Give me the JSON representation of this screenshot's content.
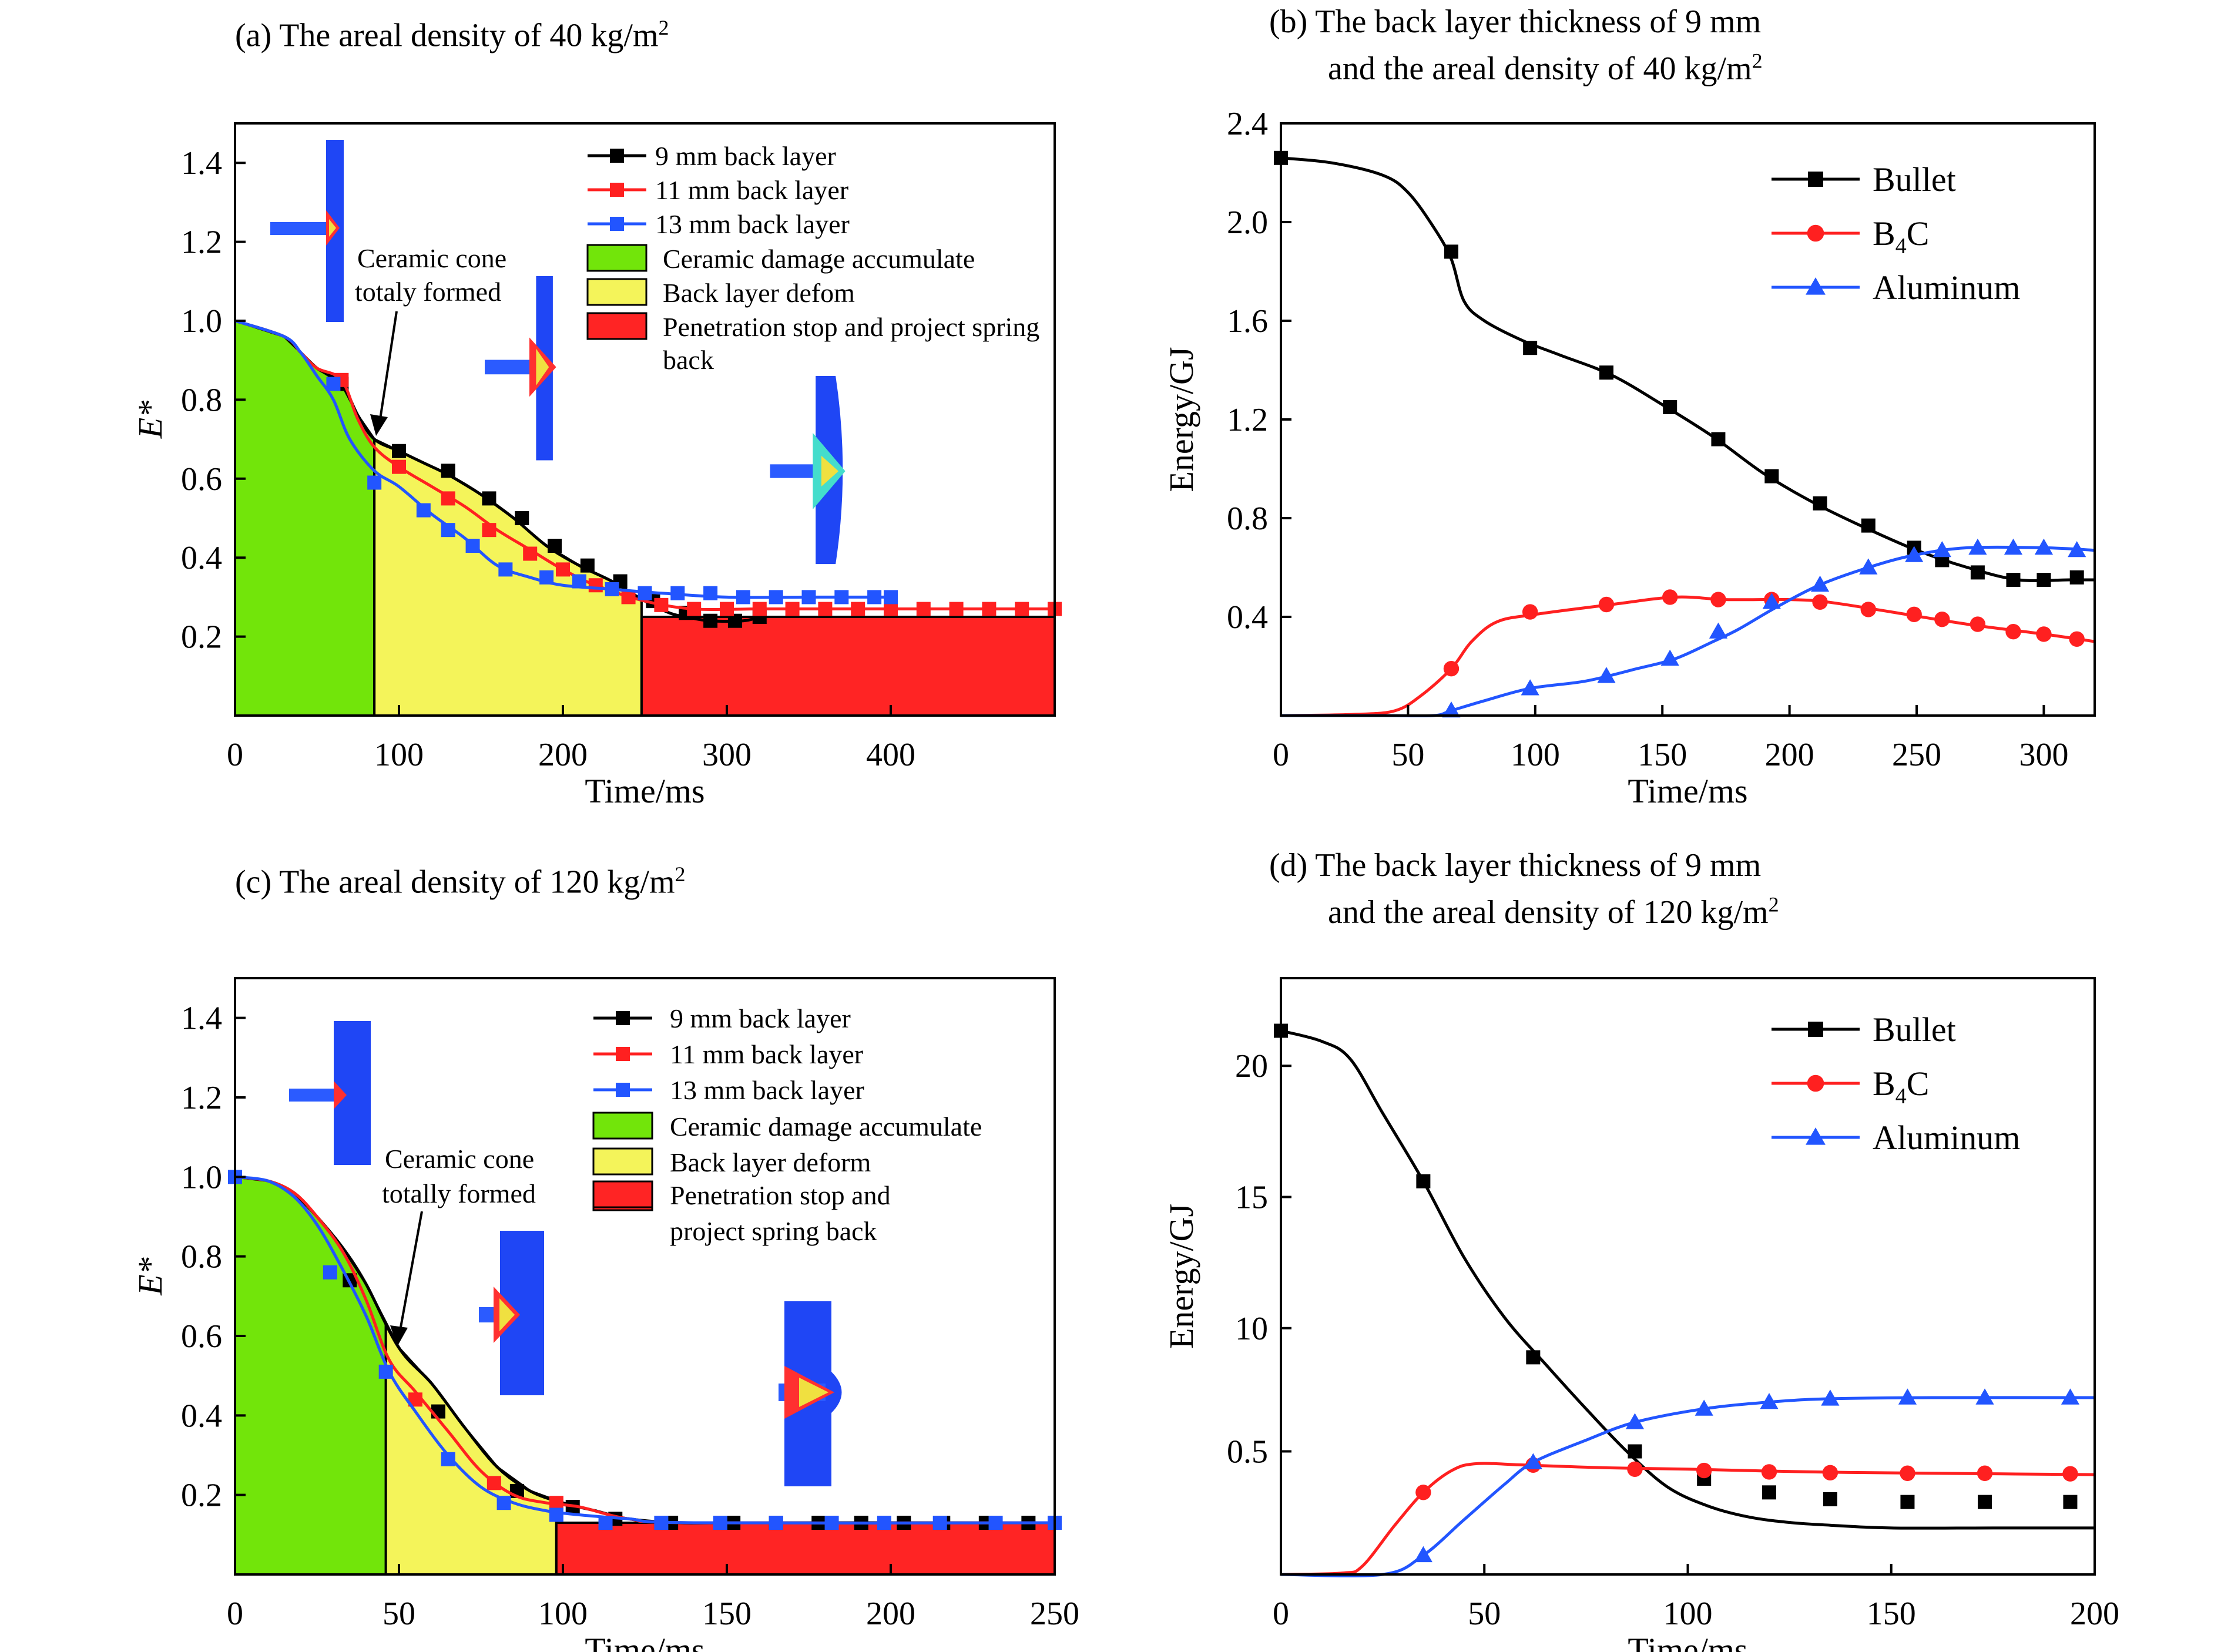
{
  "panels": {
    "a": {
      "title_main": "(a) The areal density of 40 kg/m",
      "title_sup": "2"
    },
    "b": {
      "title_line1": "(b) The back layer thickness of 9 mm",
      "title_line2_main": "and the areal density of 40 kg/m",
      "title_line2_sup": "2"
    },
    "c": {
      "title_main": "(c) The areal density of 120 kg/m",
      "title_sup": "2"
    },
    "d": {
      "title_line1": "(d) The back layer thickness of 9 mm",
      "title_line2_main": "and the areal density of 120 kg/m",
      "title_line2_sup": "2"
    }
  },
  "colors": {
    "black": "#000000",
    "red": "#ff2020",
    "blue": "#2255ff",
    "green_region": "#72e50a",
    "yellow_region": "#f4f45a",
    "red_region": "#ff2424"
  },
  "chart_data": [
    {
      "id": "a",
      "type": "line",
      "xlabel": "Time/ms",
      "ylabel": "E*",
      "xlim": [
        0,
        500
      ],
      "ylim": [
        0,
        1.5
      ],
      "xticks": [
        0,
        100,
        200,
        300,
        400
      ],
      "yticks": [
        0.2,
        0.4,
        0.6,
        0.8,
        1.0,
        1.2,
        1.4
      ],
      "regions": [
        {
          "label": "Ceramic damage accumulate",
          "x0": 0,
          "x1": 85,
          "color": "#72e50a"
        },
        {
          "label": "Back layer defom",
          "x0": 85,
          "x1": 248,
          "color": "#f4f45a"
        },
        {
          "label": "Penetration stop and project spring back",
          "x0": 248,
          "x1": 500,
          "color": "#ff2424",
          "top": 0.25
        }
      ],
      "annotation": {
        "text_line1": "Ceramic cone",
        "text_line2": "totaly formed",
        "x": 85,
        "y": 0.7
      },
      "series": [
        {
          "name": "9 mm back layer",
          "color": "#000000",
          "x": [
            0,
            30,
            40,
            50,
            65,
            75,
            85,
            100,
            115,
            130,
            150,
            170,
            190,
            210,
            230,
            250,
            265,
            275,
            290,
            310,
            320
          ],
          "y": [
            1.0,
            0.96,
            0.92,
            0.88,
            0.84,
            0.76,
            0.7,
            0.67,
            0.64,
            0.61,
            0.56,
            0.5,
            0.43,
            0.38,
            0.34,
            0.29,
            0.26,
            0.25,
            0.24,
            0.24,
            0.25
          ],
          "markers_x": [
            65,
            100,
            130,
            155,
            175,
            195,
            215,
            235,
            255,
            275,
            290,
            305,
            320
          ],
          "markers_y": [
            0.84,
            0.67,
            0.62,
            0.55,
            0.5,
            0.43,
            0.38,
            0.34,
            0.29,
            0.26,
            0.24,
            0.24,
            0.25
          ]
        },
        {
          "name": "11 mm back layer",
          "color": "#ff2020",
          "x": [
            0,
            30,
            40,
            50,
            65,
            75,
            85,
            100,
            120,
            140,
            160,
            180,
            200,
            220,
            250,
            280,
            320,
            400,
            500
          ],
          "y": [
            1.0,
            0.96,
            0.92,
            0.88,
            0.85,
            0.75,
            0.68,
            0.63,
            0.58,
            0.53,
            0.47,
            0.42,
            0.37,
            0.33,
            0.29,
            0.27,
            0.27,
            0.27,
            0.27
          ],
          "markers_x": [
            65,
            100,
            130,
            155,
            180,
            200,
            220,
            240,
            260,
            280,
            300,
            320,
            340,
            360,
            380,
            400,
            420,
            440,
            460,
            480,
            500
          ],
          "markers_y": [
            0.85,
            0.63,
            0.55,
            0.47,
            0.41,
            0.37,
            0.33,
            0.3,
            0.28,
            0.27,
            0.27,
            0.27,
            0.27,
            0.27,
            0.27,
            0.27,
            0.27,
            0.27,
            0.27,
            0.27,
            0.27
          ]
        },
        {
          "name": "13 mm back layer",
          "color": "#2255ff",
          "x": [
            0,
            30,
            40,
            50,
            60,
            70,
            85,
            100,
            120,
            140,
            160,
            180,
            200,
            230,
            260,
            300,
            350,
            400
          ],
          "y": [
            1.0,
            0.96,
            0.92,
            0.86,
            0.8,
            0.7,
            0.62,
            0.58,
            0.51,
            0.45,
            0.38,
            0.35,
            0.33,
            0.32,
            0.31,
            0.3,
            0.3,
            0.3
          ],
          "markers_x": [
            60,
            85,
            115,
            130,
            145,
            165,
            190,
            210,
            230,
            250,
            270,
            290,
            310,
            330,
            350,
            370,
            390,
            400
          ],
          "markers_y": [
            0.84,
            0.59,
            0.52,
            0.47,
            0.43,
            0.37,
            0.35,
            0.34,
            0.32,
            0.31,
            0.31,
            0.31,
            0.3,
            0.3,
            0.3,
            0.3,
            0.3,
            0.3
          ]
        }
      ]
    },
    {
      "id": "b",
      "type": "line",
      "xlabel": "Time/ms",
      "ylabel": "Energy/GJ",
      "xlim": [
        0,
        320
      ],
      "ylim": [
        0,
        2.4
      ],
      "xticks": [
        0,
        50,
        100,
        150,
        200,
        250,
        300
      ],
      "yticks": [
        0.4,
        0.8,
        1.2,
        1.6,
        2.0,
        2.4
      ],
      "series": [
        {
          "name": "Bullet",
          "color": "#000000",
          "marker": "square",
          "x": [
            0,
            20,
            40,
            50,
            60,
            67,
            72,
            80,
            95,
            110,
            130,
            150,
            170,
            190,
            210,
            230,
            250,
            270,
            290,
            310,
            320
          ],
          "y": [
            2.26,
            2.24,
            2.19,
            2.12,
            1.98,
            1.85,
            1.68,
            1.6,
            1.52,
            1.46,
            1.38,
            1.26,
            1.13,
            0.98,
            0.86,
            0.76,
            0.67,
            0.6,
            0.55,
            0.55,
            0.55
          ],
          "markers_x": [
            0,
            67,
            98,
            128,
            153,
            172,
            193,
            212,
            231,
            249,
            260,
            274,
            288,
            300,
            313
          ],
          "markers_y": [
            2.26,
            1.88,
            1.49,
            1.39,
            1.25,
            1.12,
            0.97,
            0.86,
            0.77,
            0.68,
            0.63,
            0.58,
            0.55,
            0.55,
            0.56
          ]
        },
        {
          "name": "B4C",
          "color": "#ff2020",
          "marker": "circle",
          "x": [
            0,
            30,
            45,
            55,
            67,
            75,
            85,
            100,
            130,
            155,
            175,
            200,
            215,
            240,
            270,
            300,
            320
          ],
          "y": [
            0.0,
            0.005,
            0.02,
            0.08,
            0.19,
            0.3,
            0.38,
            0.41,
            0.45,
            0.48,
            0.47,
            0.47,
            0.46,
            0.42,
            0.37,
            0.33,
            0.3
          ],
          "markers_x": [
            67,
            98,
            128,
            153,
            172,
            193,
            212,
            231,
            249,
            260,
            274,
            288,
            300,
            313
          ],
          "markers_y": [
            0.19,
            0.42,
            0.45,
            0.48,
            0.47,
            0.47,
            0.46,
            0.43,
            0.41,
            0.39,
            0.37,
            0.34,
            0.33,
            0.31
          ]
        },
        {
          "name": "Aluminum",
          "color": "#2255ff",
          "marker": "triangle",
          "x": [
            0,
            40,
            60,
            67,
            80,
            98,
            120,
            140,
            155,
            170,
            180,
            195,
            212,
            231,
            249,
            270,
            300,
            320
          ],
          "y": [
            0.0,
            0.0,
            0.0,
            0.02,
            0.06,
            0.11,
            0.14,
            0.19,
            0.23,
            0.3,
            0.35,
            0.44,
            0.53,
            0.6,
            0.65,
            0.68,
            0.68,
            0.67
          ],
          "markers_x": [
            67,
            98,
            128,
            153,
            172,
            193,
            212,
            231,
            249,
            260,
            274,
            288,
            300,
            313
          ],
          "markers_y": [
            0.02,
            0.11,
            0.16,
            0.23,
            0.34,
            0.46,
            0.53,
            0.6,
            0.65,
            0.67,
            0.68,
            0.68,
            0.68,
            0.67
          ]
        }
      ]
    },
    {
      "id": "c",
      "type": "line",
      "xlabel": "Time/ms",
      "ylabel": "E*",
      "xlim": [
        0,
        250
      ],
      "ylim": [
        0,
        1.5
      ],
      "xticks": [
        0,
        50,
        100,
        150,
        200,
        250
      ],
      "yticks": [
        0.2,
        0.4,
        0.6,
        0.8,
        1.0,
        1.2,
        1.4
      ],
      "regions": [
        {
          "label": "Ceramic damage accumulate",
          "x0": 0,
          "x1": 46,
          "color": "#72e50a"
        },
        {
          "label": "Back layer deform",
          "x0": 46,
          "x1": 98,
          "color": "#f4f45a"
        },
        {
          "label": "Penetration stop and project spring back",
          "x0": 98,
          "x1": 250,
          "color": "#ff2424",
          "top": 0.13
        }
      ],
      "annotation": {
        "text_line1": "Ceramic cone",
        "text_line2": "totally formed",
        "x": 47,
        "y": 0.57
      },
      "series": [
        {
          "name": "9 mm back layer",
          "color": "#000000",
          "x": [
            0,
            10,
            18,
            25,
            33,
            40,
            50,
            60,
            70,
            80,
            90,
            100,
            110,
            120,
            135,
            150,
            200,
            250
          ],
          "y": [
            1.0,
            0.99,
            0.96,
            0.9,
            0.82,
            0.73,
            0.57,
            0.48,
            0.37,
            0.27,
            0.21,
            0.18,
            0.16,
            0.14,
            0.13,
            0.13,
            0.13,
            0.13
          ],
          "markers_x": [
            35,
            62,
            86,
            103,
            116,
            133,
            152,
            165,
            178,
            191,
            204,
            216,
            229,
            242,
            250
          ],
          "markers_y": [
            0.74,
            0.41,
            0.21,
            0.17,
            0.14,
            0.13,
            0.13,
            0.13,
            0.13,
            0.13,
            0.13,
            0.13,
            0.13,
            0.13,
            0.13
          ]
        },
        {
          "name": "11 mm back layer",
          "color": "#ff2020",
          "x": [
            0,
            10,
            18,
            25,
            33,
            40,
            47,
            55,
            65,
            75,
            85,
            95,
            105,
            120,
            140,
            250
          ],
          "y": [
            1.0,
            0.99,
            0.96,
            0.9,
            0.81,
            0.69,
            0.54,
            0.46,
            0.36,
            0.26,
            0.2,
            0.18,
            0.17,
            0.14,
            0.13,
            0.13
          ],
          "markers_x": [
            55,
            79,
            98
          ],
          "markers_y": [
            0.44,
            0.23,
            0.18
          ]
        },
        {
          "name": "13 mm back layer",
          "color": "#2255ff",
          "x": [
            0,
            10,
            18,
            25,
            32,
            40,
            47,
            55,
            65,
            75,
            85,
            95,
            105,
            120,
            140,
            250
          ],
          "y": [
            1.0,
            0.99,
            0.95,
            0.88,
            0.78,
            0.65,
            0.51,
            0.41,
            0.3,
            0.22,
            0.18,
            0.16,
            0.15,
            0.14,
            0.13,
            0.13
          ],
          "markers_x": [
            0,
            29,
            46,
            65,
            82,
            98,
            113,
            130,
            148,
            165,
            182,
            198,
            215,
            232,
            250
          ],
          "markers_y": [
            1.0,
            0.76,
            0.51,
            0.29,
            0.18,
            0.15,
            0.13,
            0.13,
            0.13,
            0.13,
            0.13,
            0.13,
            0.13,
            0.13,
            0.13
          ]
        }
      ]
    },
    {
      "id": "d",
      "type": "line",
      "xlabel": "Time/ms",
      "ylabel": "Energy/GJ",
      "xlim": [
        0,
        200
      ],
      "y_tick_labels": [
        "0.5",
        "10",
        "15",
        "20"
      ],
      "xticks": [
        0,
        50,
        100,
        150,
        200
      ],
      "series": [
        {
          "name": "Bullet",
          "color": "#000000",
          "marker": "square",
          "x": [
            0,
            10,
            17,
            25,
            35,
            45,
            55,
            65,
            75,
            85,
            95,
            105,
            115,
            125,
            135,
            150,
            175,
            200
          ],
          "y": [
            21.0,
            20.7,
            20.2,
            18.2,
            15.6,
            12.7,
            10.4,
            8.4,
            6.4,
            4.5,
            3.2,
            2.5,
            2.1,
            1.9,
            1.8,
            1.7,
            1.7,
            1.7
          ],
          "markers_x": [
            0,
            35,
            62,
            87,
            104,
            120,
            135,
            154,
            173,
            194
          ],
          "markers_y": [
            21.0,
            15.6,
            8.7,
            4.5,
            3.5,
            3.0,
            2.75,
            2.65,
            2.65,
            2.65
          ]
        },
        {
          "name": "B4C",
          "color": "#ff2020",
          "marker": "circle",
          "x": [
            0,
            15,
            20,
            28,
            35,
            42,
            48,
            60,
            80,
            100,
            130,
            160,
            200
          ],
          "y": [
            0.0,
            0.05,
            0.3,
            1.8,
            3.0,
            3.8,
            4.05,
            4.0,
            3.9,
            3.85,
            3.75,
            3.7,
            3.65
          ],
          "markers_x": [
            35,
            62,
            87,
            104,
            120,
            135,
            154,
            173,
            194
          ],
          "markers_y": [
            3.0,
            4.0,
            3.85,
            3.8,
            3.75,
            3.72,
            3.7,
            3.7,
            3.68
          ]
        },
        {
          "name": "Aluminum",
          "color": "#2255ff",
          "marker": "triangle",
          "x": [
            0,
            25,
            35,
            45,
            55,
            62,
            75,
            87,
            104,
            120,
            135,
            160,
            200
          ],
          "y": [
            0.0,
            0.0,
            0.7,
            2.0,
            3.3,
            4.1,
            5.0,
            5.8,
            6.4,
            6.7,
            6.85,
            6.9,
            6.9
          ],
          "markers_x": [
            35,
            62,
            87,
            104,
            120,
            135,
            154,
            173,
            194
          ],
          "markers_y": [
            0.7,
            4.1,
            5.8,
            6.4,
            6.7,
            6.85,
            6.9,
            6.9,
            6.9
          ]
        }
      ]
    }
  ]
}
